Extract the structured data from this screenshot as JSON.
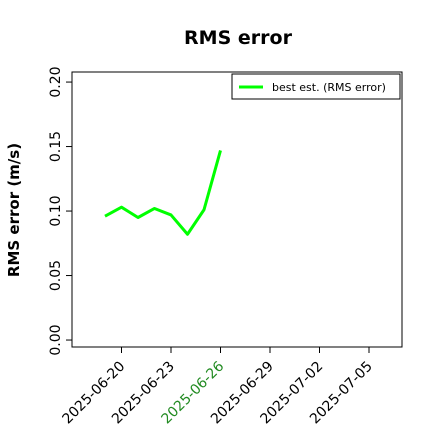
{
  "chart_data": {
    "type": "line",
    "title": "RMS error",
    "y_label": "RMS error (m/s)",
    "x": [
      "2025-06-19",
      "2025-06-20",
      "2025-06-21",
      "2025-06-22",
      "2025-06-23",
      "2025-06-24",
      "2025-06-25",
      "2025-06-26"
    ],
    "series": [
      {
        "name": "best est. (RMS error)",
        "color": "#00ff00",
        "values": [
          0.096,
          0.103,
          0.095,
          0.102,
          0.097,
          0.082,
          0.101,
          0.147
        ]
      }
    ],
    "xlim": [
      "2025-06-17",
      "2025-07-07"
    ],
    "xticks": [
      "2025-06-20",
      "2025-06-23",
      "2025-06-26",
      "2025-06-29",
      "2025-07-02",
      "2025-07-05"
    ],
    "highlight_xtick": 2,
    "highlight_color": "#228b22",
    "ylim": [
      -0.0054,
      0.2078
    ],
    "yticks": [
      {
        "value": 0,
        "label": "0.00"
      },
      {
        "value": 0.05,
        "label": "0.05"
      },
      {
        "value": 0.1,
        "label": "0.10"
      },
      {
        "value": 0.15,
        "label": "0.15"
      },
      {
        "value": 0.2,
        "label": "0.20"
      }
    ],
    "legend": "upper right"
  }
}
